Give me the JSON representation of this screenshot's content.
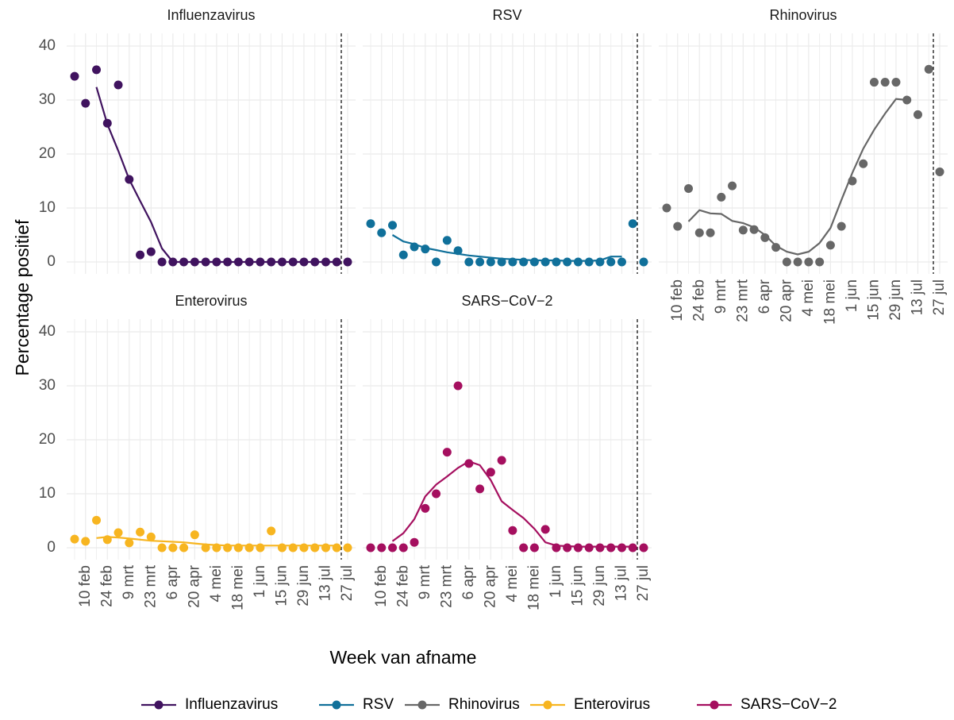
{
  "chart_data": {
    "type": "line",
    "xlabel": "Week van afname",
    "ylabel": "Percentage positief",
    "categories": [
      null,
      "10 feb",
      null,
      "24 feb",
      null,
      "9 mrt",
      null,
      "23 mrt",
      null,
      "6 apr",
      null,
      "20 apr",
      null,
      "4 mei",
      null,
      "18 mei",
      null,
      "1 jun",
      null,
      "15 jun",
      null,
      "29 jun",
      null,
      "13 jul",
      null,
      "27 jul"
    ],
    "ylim": [
      0,
      40
    ],
    "yticks": [
      0,
      10,
      20,
      30,
      40
    ],
    "grid": true,
    "legend": "bottom",
    "series": [
      {
        "name": "Influenzavirus",
        "color": "#40135f",
        "values": [
          34.4,
          29.4,
          35.6,
          25.7,
          32.8,
          15.3,
          1.3,
          1.9,
          0,
          0,
          0,
          0,
          0,
          0,
          0,
          0,
          0,
          0,
          0,
          0,
          0,
          0,
          0,
          0,
          0,
          0
        ],
        "trend": [
          null,
          null,
          32.4,
          25.5,
          20.6,
          15.3,
          11.3,
          7.4,
          2.5,
          0,
          0,
          0,
          0,
          0,
          0,
          0,
          0,
          0,
          0,
          0,
          0,
          0,
          0,
          0,
          0,
          null
        ]
      },
      {
        "name": "RSV",
        "color": "#10709a",
        "values": [
          7.1,
          5.4,
          6.8,
          1.3,
          2.8,
          2.4,
          0,
          4.0,
          2.1,
          0,
          0,
          0,
          0,
          0,
          0,
          0,
          0,
          0,
          0,
          0,
          0,
          0,
          0,
          0,
          7.1,
          0
        ],
        "trend": [
          null,
          null,
          5.0,
          3.8,
          3.3,
          2.6,
          2.2,
          1.8,
          1.5,
          1.2,
          1.0,
          0.8,
          0.6,
          0.5,
          0.4,
          0.3,
          0.3,
          0.3,
          0.2,
          0.2,
          0.2,
          0.3,
          1.0,
          1.0,
          null,
          null
        ]
      },
      {
        "name": "Rhinovirus",
        "color": "#676767",
        "values": [
          10.0,
          6.6,
          13.6,
          5.4,
          5.4,
          12.0,
          14.1,
          5.9,
          6.0,
          4.5,
          2.7,
          0,
          0,
          0,
          0,
          3.1,
          6.6,
          15.0,
          18.2,
          33.3,
          33.3,
          33.3,
          30.0,
          27.3,
          35.7,
          16.7
        ],
        "trend": [
          null,
          null,
          7.5,
          9.6,
          9.0,
          8.9,
          7.6,
          7.2,
          6.4,
          5.0,
          3.0,
          1.9,
          1.4,
          1.9,
          3.5,
          6.3,
          11.5,
          16.5,
          21.0,
          24.5,
          27.5,
          30.2,
          30.0,
          null,
          null,
          null
        ]
      },
      {
        "name": "Enterovirus",
        "color": "#f7b520",
        "values": [
          1.6,
          1.2,
          5.1,
          1.5,
          2.8,
          0.9,
          2.9,
          2.0,
          0,
          0,
          0,
          2.4,
          0,
          0,
          0,
          0,
          0,
          0,
          3.1,
          0,
          0,
          0,
          0,
          0,
          0,
          0
        ],
        "trend": [
          null,
          null,
          1.8,
          2.0,
          1.9,
          1.7,
          1.5,
          1.3,
          1.2,
          1.1,
          1.0,
          0.8,
          0.6,
          0.5,
          0.4,
          0.4,
          0.4,
          0.4,
          0.4,
          0.4,
          0.4,
          0.4,
          0.4,
          0.4,
          0.4,
          null
        ]
      },
      {
        "name": "SARS−CoV−2",
        "color": "#a50f5f",
        "values": [
          0,
          0,
          0,
          0,
          1.0,
          7.3,
          10.0,
          17.7,
          30.0,
          15.6,
          10.9,
          14.0,
          16.2,
          3.2,
          0,
          0,
          3.4,
          0,
          0,
          0,
          0,
          0,
          0,
          0,
          0,
          0
        ],
        "trend": [
          null,
          null,
          1.2,
          2.7,
          5.3,
          9.5,
          11.7,
          13.2,
          14.8,
          16.0,
          15.3,
          12.5,
          8.6,
          7.0,
          5.5,
          3.5,
          1.0,
          0.4,
          0.3,
          0.2,
          0.2,
          0.2,
          0.2,
          0.2,
          0.2,
          null
        ]
      }
    ]
  }
}
